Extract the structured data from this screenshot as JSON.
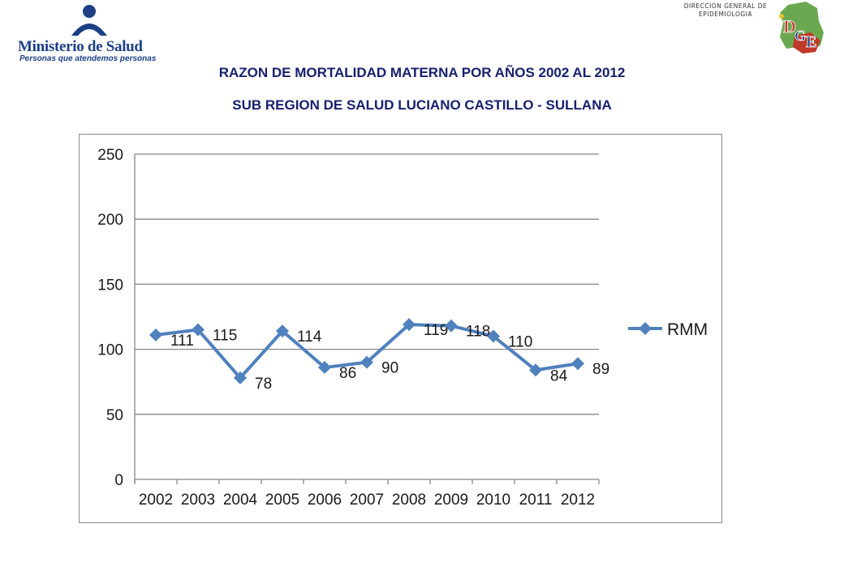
{
  "header": {
    "logo_name": "Ministerio de Salud",
    "logo_tagline": "Personas que atendemos personas",
    "dge_line1": "DIRECCIÓN GENERAL DE",
    "dge_line2": "EPIDEMIOLOGIA",
    "dge_logo_letters": [
      "D",
      "G",
      "E"
    ]
  },
  "titles": {
    "line1": "RAZON DE MORTALIDAD MATERNA POR AÑOS 2002 AL 2012",
    "line2": "SUB REGION DE SALUD LUCIANO CASTILLO - SULLANA"
  },
  "colors": {
    "series": "#4f81bd",
    "title": "#17206d",
    "logo_blue": "#1c3f86"
  },
  "chart_data": {
    "type": "line",
    "title": "",
    "xlabel": "",
    "ylabel": "",
    "categories": [
      "2002",
      "2003",
      "2004",
      "2005",
      "2006",
      "2007",
      "2008",
      "2009",
      "2010",
      "2011",
      "2012"
    ],
    "series": [
      {
        "name": "RMM",
        "values": [
          111,
          115,
          78,
          114,
          86,
          90,
          119,
          118,
          110,
          84,
          89
        ],
        "labels": [
          "111",
          "115",
          "78",
          "114",
          "86",
          "90",
          "119",
          "118",
          "110",
          "84",
          "89"
        ]
      }
    ],
    "yticks": [
      "0",
      "50",
      "100",
      "150",
      "200",
      "250"
    ],
    "ylim": [
      0,
      250
    ],
    "grid": true,
    "legend": "right"
  }
}
